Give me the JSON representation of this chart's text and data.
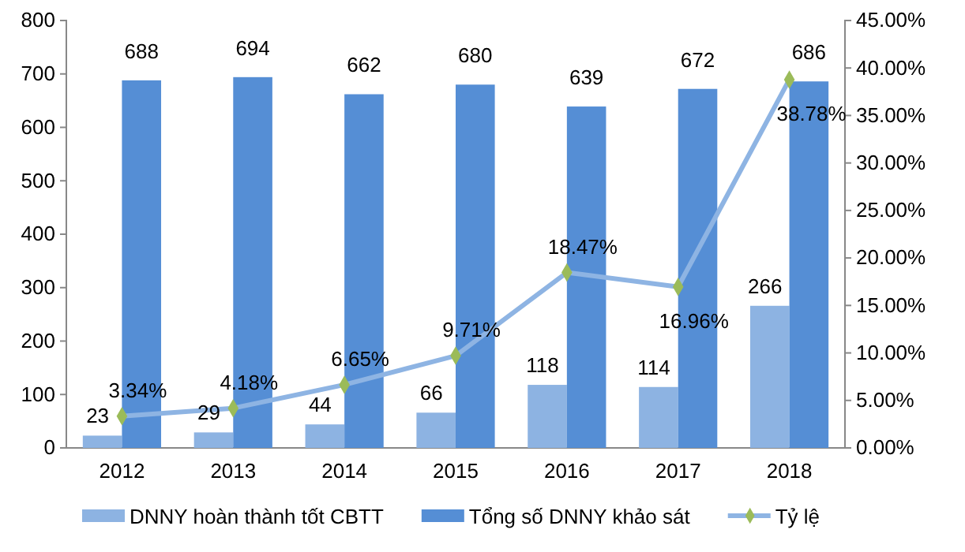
{
  "chart_data": {
    "type": "bar",
    "categories": [
      "2012",
      "2013",
      "2014",
      "2015",
      "2016",
      "2017",
      "2018"
    ],
    "series": [
      {
        "name": "DNNY hoàn thành tốt CBTT",
        "color": "#8db3e2",
        "values": [
          23,
          29,
          44,
          66,
          118,
          114,
          266
        ],
        "value_labels": [
          "23",
          "29",
          "44",
          "66",
          "118",
          "114",
          "266"
        ]
      },
      {
        "name": "Tổng số DNNY khảo sát",
        "color": "#558ed5",
        "values": [
          688,
          694,
          662,
          680,
          639,
          672,
          686
        ],
        "value_labels": [
          "688",
          "694",
          "662",
          "680",
          "639",
          "672",
          "686"
        ]
      },
      {
        "name": "Tỷ lệ",
        "type": "line",
        "axis": "y2",
        "color": "#8eb4e3",
        "marker": "diamond",
        "values": [
          3.34,
          4.18,
          6.65,
          9.71,
          18.47,
          16.96,
          38.78
        ],
        "value_labels": [
          "3.34%",
          "4.18%",
          "6.65%",
          "9.71%",
          "18.47%",
          "16.96%",
          "38.78%"
        ]
      }
    ],
    "ylim": [
      0,
      800
    ],
    "yticks": [
      0,
      100,
      200,
      300,
      400,
      500,
      600,
      700,
      800
    ],
    "y2lim": [
      0,
      45
    ],
    "y2ticks": [
      {
        "value": 0,
        "label": "0.00%"
      },
      {
        "value": 5,
        "label": "5.00%"
      },
      {
        "value": 10,
        "label": "10.00%"
      },
      {
        "value": 15,
        "label": "15.00%"
      },
      {
        "value": 20,
        "label": "20.00%"
      },
      {
        "value": 25,
        "label": "25.00%"
      },
      {
        "value": 30,
        "label": "30.00%"
      },
      {
        "value": 35,
        "label": "35.00%"
      },
      {
        "value": 40,
        "label": "40.00%"
      },
      {
        "value": 45,
        "label": "45.00%"
      }
    ],
    "legend": "bottom"
  }
}
